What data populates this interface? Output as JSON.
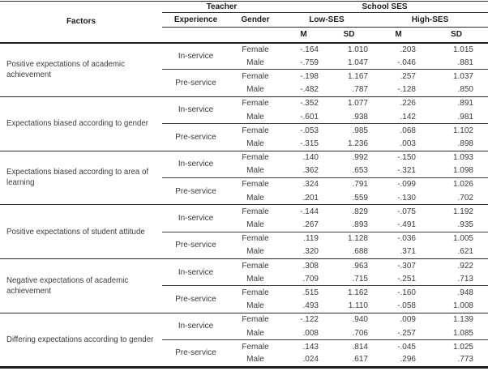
{
  "table": {
    "header": {
      "factors": "Factors",
      "teacher": "Teacher",
      "school_ses": "School SES",
      "experience": "Experience",
      "gender": "Gender",
      "low_ses": "Low-SES",
      "high_ses": "High-SES",
      "m": "M",
      "sd": "SD"
    },
    "value_column_names": [
      "low-ses-m",
      "low-ses-sd",
      "high-ses-m",
      "high-ses-sd"
    ],
    "groups": [
      {
        "factor": "Positive expectations of academic achievement",
        "sections": [
          {
            "experience": "In-service",
            "rows": [
              {
                "gender": "Female",
                "values": [
                  "-.164",
                  "1.010",
                  ".203",
                  "1.015"
                ]
              },
              {
                "gender": "Male",
                "values": [
                  "-.759",
                  "1.047",
                  "-.046",
                  ".881"
                ]
              }
            ]
          },
          {
            "experience": "Pre-service",
            "rows": [
              {
                "gender": "Female",
                "values": [
                  "-.198",
                  "1.167",
                  ".257",
                  "1.037"
                ]
              },
              {
                "gender": "Male",
                "values": [
                  "-.482",
                  ".787",
                  "-.128",
                  ".850"
                ]
              }
            ]
          }
        ]
      },
      {
        "factor": "Expectations biased according to gender",
        "sections": [
          {
            "experience": "In-service",
            "rows": [
              {
                "gender": "Female",
                "values": [
                  "-.352",
                  "1.077",
                  ".226",
                  ".891"
                ]
              },
              {
                "gender": "Male",
                "values": [
                  "-.601",
                  ".938",
                  ".142",
                  ".981"
                ]
              }
            ]
          },
          {
            "experience": "Pre-service",
            "rows": [
              {
                "gender": "Female",
                "values": [
                  "-.053",
                  ".985",
                  ".068",
                  "1.102"
                ]
              },
              {
                "gender": "Male",
                "values": [
                  "-.315",
                  "1.236",
                  ".003",
                  ".898"
                ]
              }
            ]
          }
        ]
      },
      {
        "factor": "Expectations biased according to area of learning",
        "sections": [
          {
            "experience": "In-service",
            "rows": [
              {
                "gender": "Female",
                "values": [
                  ".140",
                  ".992",
                  "-.150",
                  "1.093"
                ]
              },
              {
                "gender": "Male",
                "values": [
                  ".362",
                  ".653",
                  "-.321",
                  "1.098"
                ]
              }
            ]
          },
          {
            "experience": "Pre-service",
            "rows": [
              {
                "gender": "Female",
                "values": [
                  ".324",
                  ".791",
                  "-.099",
                  "1.026"
                ]
              },
              {
                "gender": "Male",
                "values": [
                  ".201",
                  ".559",
                  "-.130",
                  ".702"
                ]
              }
            ]
          }
        ]
      },
      {
        "factor": "Positive expectations of student attitude",
        "sections": [
          {
            "experience": "In-service",
            "rows": [
              {
                "gender": "Female",
                "values": [
                  "-.144",
                  ".829",
                  "-.075",
                  "1.192"
                ]
              },
              {
                "gender": "Male",
                "values": [
                  ".267",
                  ".893",
                  "-.491",
                  ".935"
                ]
              }
            ]
          },
          {
            "experience": "Pre-service",
            "rows": [
              {
                "gender": "Female",
                "values": [
                  ".119",
                  "1.128",
                  "-.036",
                  "1.005"
                ]
              },
              {
                "gender": "Male",
                "values": [
                  ".320",
                  ".688",
                  ".371",
                  ".621"
                ]
              }
            ]
          }
        ]
      },
      {
        "factor": "Negative expectations of academic achievement",
        "sections": [
          {
            "experience": "In-service",
            "rows": [
              {
                "gender": "Female",
                "values": [
                  ".308",
                  ".963",
                  "-.307",
                  ".922"
                ]
              },
              {
                "gender": "Male",
                "values": [
                  ".709",
                  ".715",
                  "-.251",
                  ".713"
                ]
              }
            ]
          },
          {
            "experience": "Pre-service",
            "rows": [
              {
                "gender": "Female",
                "values": [
                  ".515",
                  "1.162",
                  "-.160",
                  ".948"
                ]
              },
              {
                "gender": "Male",
                "values": [
                  ".493",
                  "1.110",
                  "-.058",
                  "1.008"
                ]
              }
            ]
          }
        ]
      },
      {
        "factor": "Differing expectations according to gender",
        "sections": [
          {
            "experience": "In-service",
            "rows": [
              {
                "gender": "Female",
                "values": [
                  "-.122",
                  ".940",
                  ".009",
                  "1.139"
                ]
              },
              {
                "gender": "Male",
                "values": [
                  ".008",
                  ".706",
                  "-.257",
                  "1.085"
                ]
              }
            ]
          },
          {
            "experience": "Pre-service",
            "rows": [
              {
                "gender": "Female",
                "values": [
                  ".143",
                  ".814",
                  "-.045",
                  "1.025"
                ]
              },
              {
                "gender": "Male",
                "values": [
                  ".024",
                  ".617",
                  ".296",
                  ".773"
                ]
              }
            ]
          }
        ]
      }
    ]
  }
}
